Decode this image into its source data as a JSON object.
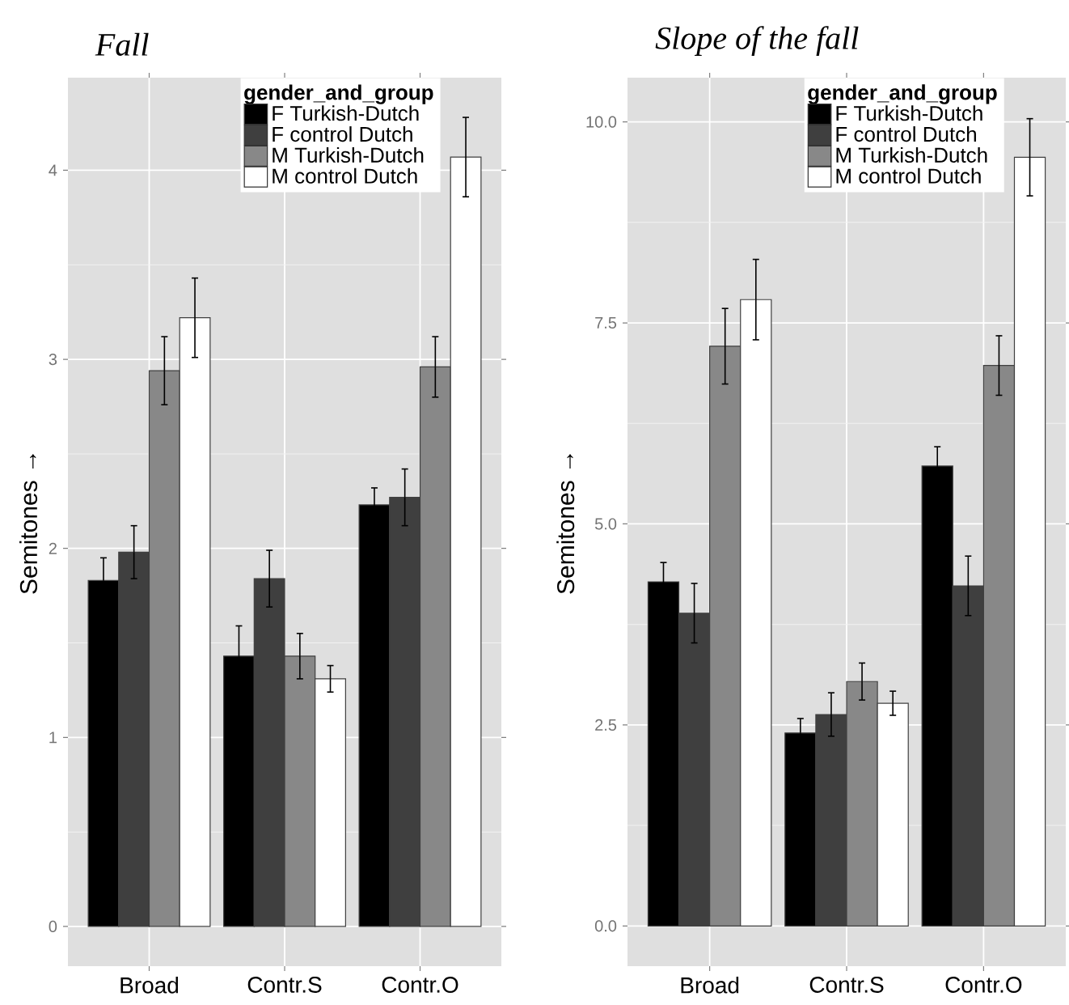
{
  "chart_data": [
    {
      "type": "bar",
      "title": "Fall",
      "ylabel": "Semitones →",
      "legend_title": "gender_and_group",
      "legend": "top right",
      "grid": true,
      "categories": [
        "Broad",
        "Contr.S",
        "Contr.O"
      ],
      "ylim": [
        -0.21,
        4.49
      ],
      "yticks": [
        0,
        1,
        2,
        3,
        4
      ],
      "series": [
        {
          "name": "F Turkish-Dutch",
          "color": "#000000",
          "values": [
            1.83,
            1.43,
            2.23
          ],
          "errors": [
            0.12,
            0.16,
            0.09
          ]
        },
        {
          "name": "F control Dutch",
          "color": "#3f3f3f",
          "values": [
            1.98,
            1.84,
            2.27
          ],
          "errors": [
            0.14,
            0.15,
            0.15
          ]
        },
        {
          "name": "M Turkish-Dutch",
          "color": "#888888",
          "values": [
            2.94,
            1.43,
            2.96
          ],
          "errors": [
            0.18,
            0.12,
            0.16
          ]
        },
        {
          "name": "M control Dutch",
          "color": "#ffffff",
          "values": [
            3.22,
            1.31,
            4.07
          ],
          "errors": [
            0.21,
            0.07,
            0.21
          ]
        }
      ]
    },
    {
      "type": "bar",
      "title": "Slope of the fall",
      "ylabel": "Semitones →",
      "legend_title": "gender_and_group",
      "legend": "top right",
      "grid": true,
      "categories": [
        "Broad",
        "Contr.S",
        "Contr.O"
      ],
      "ylim": [
        -0.5,
        10.55
      ],
      "yticks": [
        {
          "value": 0,
          "label": "0.0"
        },
        2.5,
        {
          "value": 5,
          "label": "5.0"
        },
        7.5,
        {
          "value": 10,
          "label": "10.0"
        }
      ],
      "series": [
        {
          "name": "F Turkish-Dutch",
          "color": "#000000",
          "values": [
            4.28,
            2.4,
            5.72
          ],
          "errors": [
            0.24,
            0.18,
            0.24
          ]
        },
        {
          "name": "F control Dutch",
          "color": "#3f3f3f",
          "values": [
            3.89,
            2.63,
            4.23
          ],
          "errors": [
            0.37,
            0.27,
            0.37
          ]
        },
        {
          "name": "M Turkish-Dutch",
          "color": "#888888",
          "values": [
            7.21,
            3.04,
            6.97
          ],
          "errors": [
            0.47,
            0.23,
            0.37
          ]
        },
        {
          "name": "M control Dutch",
          "color": "#ffffff",
          "values": [
            7.79,
            2.77,
            9.56
          ],
          "errors": [
            0.5,
            0.15,
            0.48
          ]
        }
      ]
    }
  ]
}
